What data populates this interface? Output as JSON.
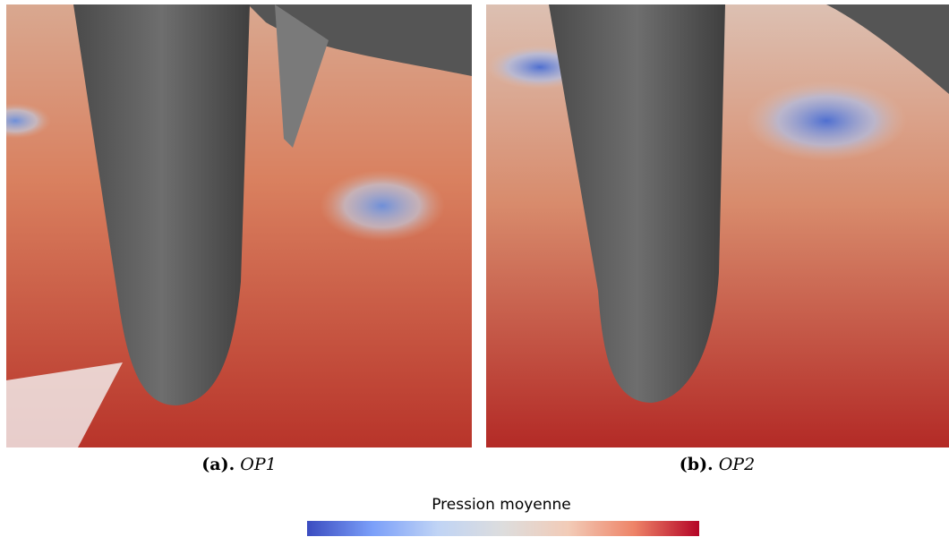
{
  "figures": [
    {
      "label": "(a).",
      "name": "OP1"
    },
    {
      "label": "(b).",
      "name": "OP2"
    }
  ],
  "colorbar": {
    "title": "Pression moyenne"
  }
}
